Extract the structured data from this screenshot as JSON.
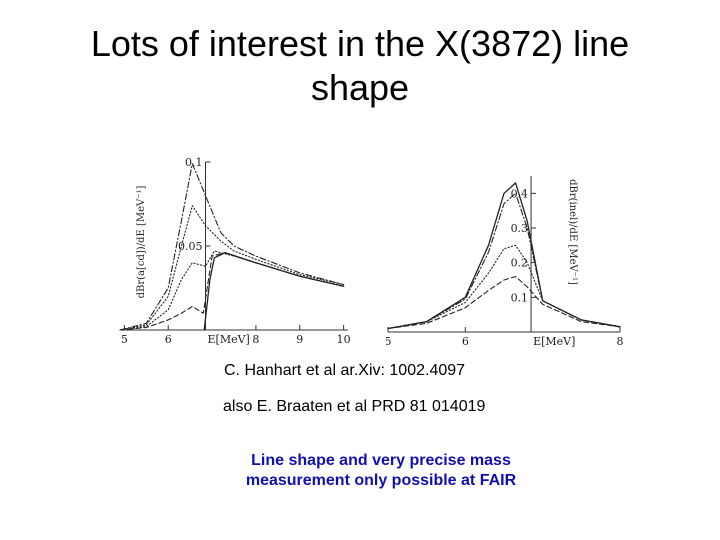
{
  "slide": {
    "title_line1": "Lots of interest in the X(3872) line",
    "title_line2": "shape",
    "citation_1": "C. Hanhart et al ar.Xiv: 1002.4097",
    "citation_2": "also E. Braaten et al PRD 81 014019",
    "note_line1": "Line shape and very precise mass",
    "note_line2": "measurement only possible at FAIR",
    "note_color": "#1010b0"
  },
  "chart_data": [
    {
      "type": "line",
      "xlabel": "E[MeV]",
      "ylabel": "dBr(a[cd])/dE [MeV⁻¹]",
      "x_ticks": [
        "5",
        "6",
        "8",
        "9",
        "10"
      ],
      "y_ticks": [
        "0.1",
        "0.05"
      ],
      "xlim": [
        4.9,
        10.1
      ],
      "ylim": [
        0,
        0.1
      ],
      "series": [
        {
          "style": "dashdot",
          "x": [
            4.9,
            5.5,
            6.0,
            6.3,
            6.55,
            6.85,
            7.2,
            7.5,
            8.0,
            9.0,
            10.0
          ],
          "y": [
            0.0,
            0.004,
            0.025,
            0.065,
            0.099,
            0.08,
            0.058,
            0.05,
            0.044,
            0.034,
            0.027
          ]
        },
        {
          "style": "dotted",
          "x": [
            4.9,
            5.5,
            6.0,
            6.3,
            6.55,
            6.85,
            7.2,
            7.5,
            8.0,
            9.0,
            10.0
          ],
          "y": [
            0.0,
            0.003,
            0.02,
            0.05,
            0.074,
            0.062,
            0.053,
            0.047,
            0.042,
            0.033,
            0.027
          ]
        },
        {
          "style": "dotted",
          "x": [
            4.9,
            5.5,
            6.0,
            6.3,
            6.55,
            6.85,
            7.05,
            7.5,
            8.0,
            9.0,
            10.0
          ],
          "y": [
            0.0,
            0.002,
            0.012,
            0.03,
            0.04,
            0.038,
            0.047,
            0.044,
            0.04,
            0.032,
            0.026
          ]
        },
        {
          "style": "dashed",
          "x": [
            4.9,
            5.5,
            6.0,
            6.3,
            6.55,
            6.8,
            7.0,
            7.3,
            8.0,
            9.0,
            10.0
          ],
          "y": [
            0.0,
            0.0015,
            0.006,
            0.01,
            0.014,
            0.01,
            0.044,
            0.046,
            0.04,
            0.032,
            0.026
          ]
        },
        {
          "style": "solid",
          "x": [
            6.82,
            6.95,
            7.05,
            7.3,
            8.0,
            9.0,
            10.0
          ],
          "y": [
            0.0,
            0.03,
            0.043,
            0.046,
            0.04,
            0.032,
            0.026
          ]
        }
      ]
    },
    {
      "type": "line",
      "xlabel": "E[MeV]",
      "ylabel": "dBr(inel)/dE [MeV⁻¹]",
      "x_ticks": [
        "5",
        "6",
        "8"
      ],
      "y_ticks": [
        "0.4",
        "0.3",
        "0.2",
        "0.1"
      ],
      "xlim": [
        5.0,
        8.0
      ],
      "ylim": [
        0,
        0.45
      ],
      "series": [
        {
          "style": "solid",
          "x": [
            5.0,
            5.5,
            6.0,
            6.3,
            6.5,
            6.65,
            6.8,
            7.0,
            7.5,
            8.0
          ],
          "y": [
            0.01,
            0.03,
            0.1,
            0.25,
            0.4,
            0.43,
            0.32,
            0.09,
            0.035,
            0.015
          ]
        },
        {
          "style": "dashdot",
          "x": [
            5.0,
            5.5,
            6.0,
            6.3,
            6.5,
            6.65,
            6.8,
            7.0,
            7.5,
            8.0
          ],
          "y": [
            0.01,
            0.03,
            0.095,
            0.23,
            0.37,
            0.4,
            0.3,
            0.09,
            0.035,
            0.015
          ]
        },
        {
          "style": "dotted",
          "x": [
            5.0,
            5.5,
            6.0,
            6.3,
            6.5,
            6.65,
            6.8,
            7.0,
            7.5,
            8.0
          ],
          "y": [
            0.01,
            0.03,
            0.085,
            0.17,
            0.24,
            0.25,
            0.2,
            0.09,
            0.035,
            0.015
          ]
        },
        {
          "style": "dashed",
          "x": [
            5.0,
            5.5,
            6.0,
            6.3,
            6.5,
            6.65,
            6.8,
            7.0,
            7.5,
            8.0
          ],
          "y": [
            0.01,
            0.025,
            0.07,
            0.12,
            0.15,
            0.16,
            0.13,
            0.08,
            0.03,
            0.015
          ]
        }
      ]
    }
  ]
}
